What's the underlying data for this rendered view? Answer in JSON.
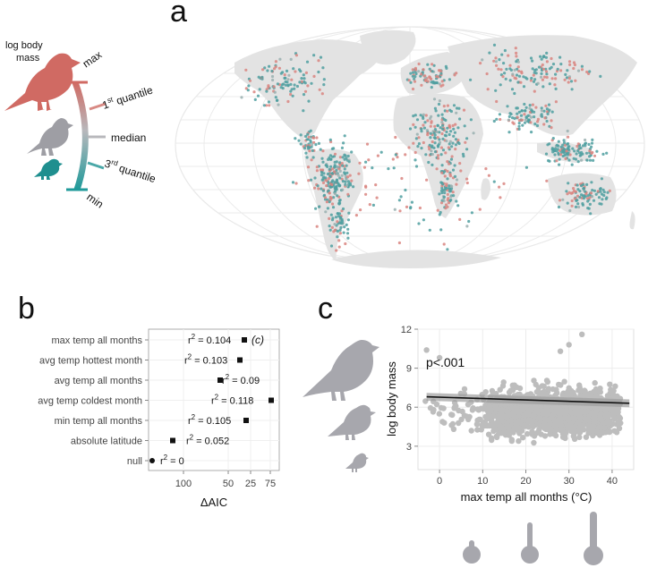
{
  "panels": {
    "a": "a",
    "b": "b",
    "c": "c"
  },
  "legend": {
    "title_line1": "log  body",
    "title_line2": "mass",
    "max": "max",
    "q1_prefix": "1",
    "q1_sup": "st",
    "q1_suffix": " quantile",
    "median": "median",
    "q3_prefix": "3",
    "q3_sup": "rd",
    "q3_suffix": " quantile",
    "min": "min",
    "colors": {
      "high": "#d06a63",
      "mid": "#b8b8bc",
      "low": "#1f9a9a"
    }
  },
  "map": {
    "land_color": "#e3e3e3",
    "grid_color": "#ebebeb"
  },
  "chart_data": [
    {
      "id": "b",
      "type": "scatter",
      "title": "",
      "xlabel": "ΔAIC",
      "x_ticks": [
        "100",
        "50",
        "25",
        "75"
      ],
      "rows": [
        {
          "label": "max temp all months",
          "r2": "= 0.104",
          "marker": "square",
          "note": "(c)"
        },
        {
          "label": "avg temp hottest month",
          "r2": "= 0.103",
          "marker": "square",
          "note": ""
        },
        {
          "label": "avg temp all months",
          "r2": "= 0.09",
          "marker": "square",
          "note": ""
        },
        {
          "label": "avg temp coldest month",
          "r2": "= 0.118",
          "marker": "square",
          "note": ""
        },
        {
          "label": "min temp all months",
          "r2": "= 0.105",
          "marker": "square",
          "note": ""
        },
        {
          "label": "absolute latitude",
          "r2": "= 0.052",
          "marker": "square",
          "note": ""
        },
        {
          "label": "null",
          "r2": "= 0",
          "marker": "circle",
          "note": ""
        }
      ],
      "r2_symbol": "r",
      "r2_sup": "2"
    },
    {
      "id": "c",
      "type": "scatter",
      "xlabel": "max temp all months (°C)",
      "ylabel": "log body mass",
      "xlim": [
        -5,
        45
      ],
      "ylim": [
        1.2,
        12
      ],
      "x_ticks": [
        0,
        10,
        20,
        30,
        40
      ],
      "y_ticks": [
        3,
        6,
        9,
        12
      ],
      "annotation": "p<.001",
      "fit_line": {
        "x": [
          -3,
          44
        ],
        "y": [
          6.8,
          6.3
        ]
      },
      "point_color": "#bdbdbd"
    }
  ]
}
